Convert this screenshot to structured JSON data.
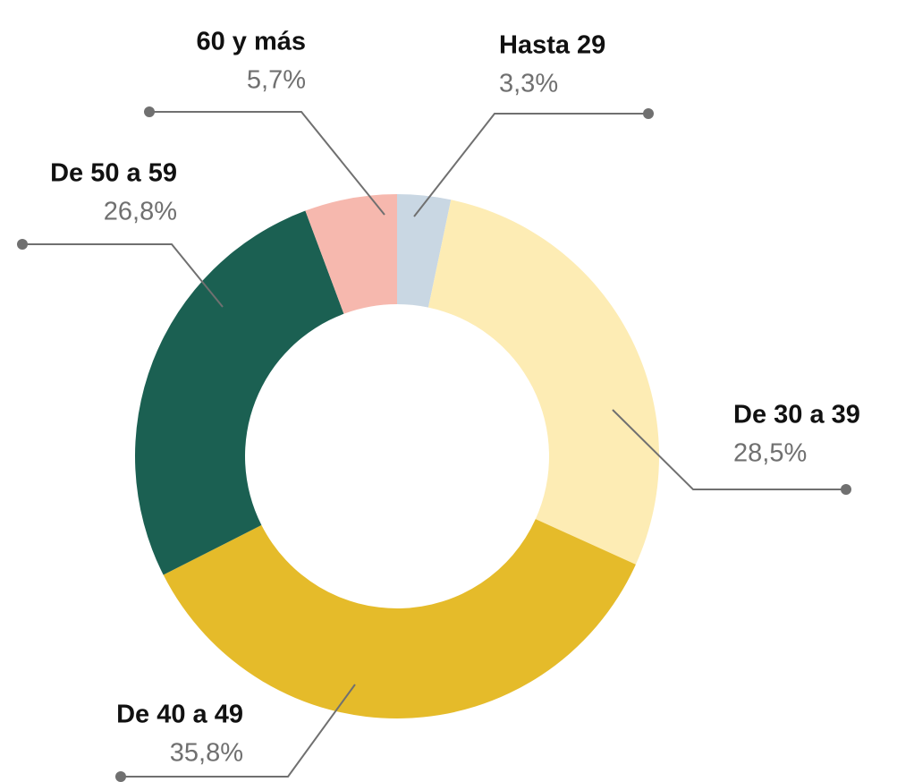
{
  "chart_data": {
    "type": "donut",
    "categories": [
      "Hasta 29",
      "De 30 a 39",
      "De 40 a 49",
      "De 50 a 59",
      "60 y más"
    ],
    "values": [
      3.3,
      28.5,
      35.8,
      26.8,
      5.7
    ],
    "value_labels": [
      "3,3%",
      "28,5%",
      "35,8%",
      "26,8%",
      "5,7%"
    ],
    "colors": [
      "#c9d7e3",
      "#fdecb4",
      "#e5bb2a",
      "#1b6052",
      "#f6b8ae"
    ]
  }
}
